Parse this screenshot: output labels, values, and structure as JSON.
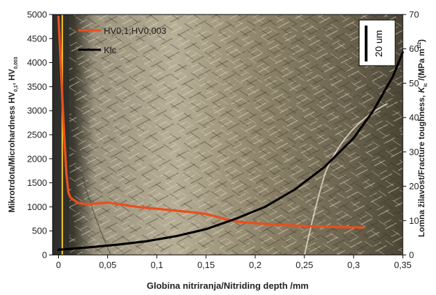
{
  "chart_data": {
    "type": "line",
    "xlabel": "Globina nitriranja/Nitriding depth /mm",
    "ylabel_left_main": "Mikrotrdota/Microhardness HV",
    "ylabel_left_sub1": "0,1",
    "ylabel_left_sub2": "0,003",
    "ylabel_right_main": "Lomna žilavost/Fracture toughness,",
    "ylabel_right_k": "K",
    "ylabel_right_ic": "Ic",
    "ylabel_right_unit": " /(MPa m",
    "ylabel_right_exp": "1/2",
    "ylabel_right_close": ")",
    "xlim": [
      -0.006,
      0.35
    ],
    "ylim_left": [
      0,
      5000
    ],
    "ylim_right": [
      0,
      70
    ],
    "x_ticks": [
      0,
      0.05,
      0.1,
      0.15,
      0.2,
      0.25,
      0.3,
      0.35
    ],
    "x_tick_labels": [
      "0",
      "0,05",
      "0,1",
      "0,15",
      "0,2",
      "0,25",
      "0,3",
      "0,35"
    ],
    "y_left_ticks": [
      0,
      500,
      1000,
      1500,
      2000,
      2500,
      3000,
      3500,
      4000,
      4500,
      5000
    ],
    "y_left_tick_labels": [
      "0",
      "500",
      "1000",
      "1500",
      "2000",
      "2500",
      "3000",
      "3500",
      "4000",
      "4500",
      "5000"
    ],
    "y_right_ticks": [
      0,
      10,
      20,
      30,
      40,
      50,
      60,
      70
    ],
    "y_right_tick_labels": [
      "0",
      "10",
      "20",
      "30",
      "40",
      "50",
      "60",
      "70"
    ],
    "legend_position": "top-left",
    "scale_bar_label": "20 um",
    "series": [
      {
        "name": "HV0,1;HV0,003",
        "axis": "left",
        "color": "#e8501e",
        "x": [
          0.0,
          0.002,
          0.004,
          0.006,
          0.008,
          0.01,
          0.012,
          0.015,
          0.02,
          0.03,
          0.04,
          0.05,
          0.06,
          0.08,
          0.1,
          0.12,
          0.14,
          0.15,
          0.16,
          0.17,
          0.18,
          0.2,
          0.22,
          0.25,
          0.28,
          0.31
        ],
        "y": [
          4950,
          4100,
          3200,
          2400,
          1700,
          1300,
          1200,
          1150,
          1080,
          1050,
          1070,
          1090,
          1060,
          1000,
          960,
          920,
          880,
          850,
          800,
          740,
          700,
          660,
          630,
          600,
          580,
          570
        ]
      },
      {
        "name": "Klc",
        "axis": "right",
        "color": "#000000",
        "x": [
          0.0,
          0.03,
          0.06,
          0.09,
          0.12,
          0.15,
          0.18,
          0.21,
          0.24,
          0.27,
          0.3,
          0.32,
          0.34,
          0.35
        ],
        "y": [
          1.5,
          2.2,
          3.0,
          4.0,
          5.5,
          7.5,
          10.5,
          14.0,
          19.0,
          25.5,
          34.0,
          42.0,
          52.0,
          59.0
        ]
      }
    ]
  },
  "colors": {
    "micrograph_dark": "#3a3428",
    "micrograph_mid": "#8b8168",
    "micrograph_light": "#c9c0a8",
    "surface_line": "#f0c020",
    "axis": "#000000"
  }
}
